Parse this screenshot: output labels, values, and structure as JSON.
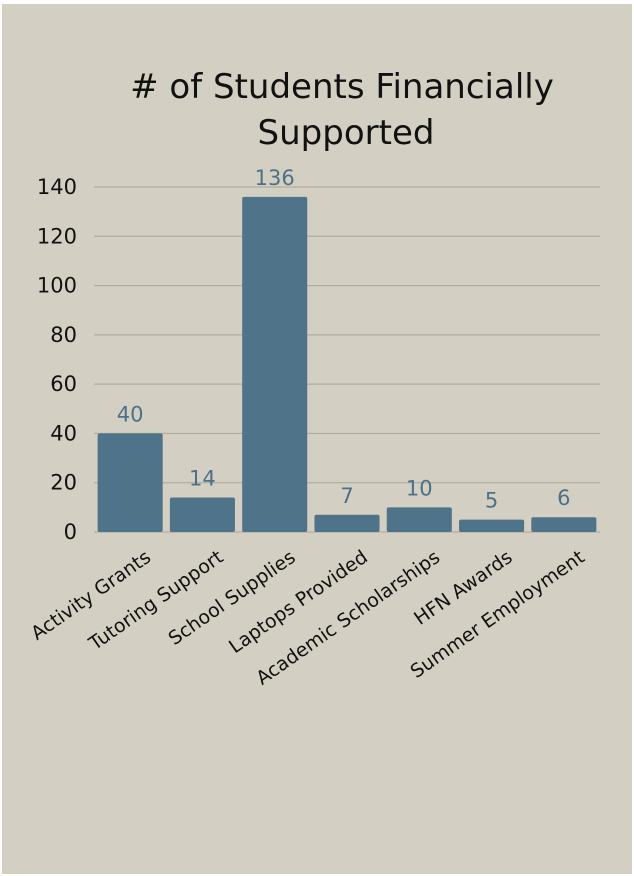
{
  "chart_data": {
    "type": "bar",
    "title_lines": [
      "# of Students Financially",
      "Supported"
    ],
    "categories": [
      "Activity Grants",
      "Tutoring Support",
      "School Supplies",
      "Laptops Provided",
      "Academic Scholarships",
      "HFN Awards",
      "Summer Employment"
    ],
    "values": [
      40,
      14,
      136,
      7,
      10,
      5,
      6
    ],
    "y_ticks": [
      0,
      20,
      40,
      60,
      80,
      100,
      120,
      140
    ],
    "ylim": [
      0,
      140
    ],
    "xlabel": "",
    "ylabel": "",
    "grid": true,
    "legend": "none",
    "bar_color": "#4f7389",
    "label_color": "#4d7189",
    "background_color": "#d3cfc2"
  }
}
